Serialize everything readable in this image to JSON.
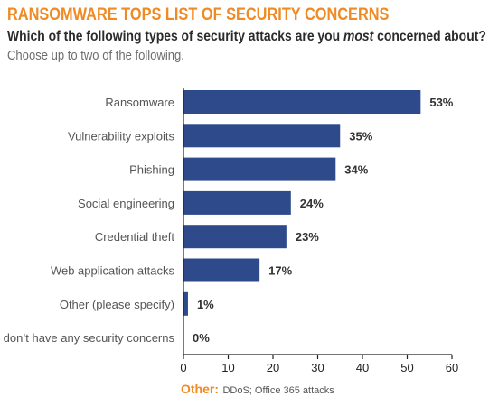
{
  "header": {
    "title": "RANSOMWARE TOPS LIST OF SECURITY CONCERNS",
    "question_before": "Which of the following types of security attacks are you ",
    "question_emphasis": "most",
    "question_after": " concerned about?",
    "instruction": "Choose up to two of the following."
  },
  "chart_data": {
    "type": "bar",
    "orientation": "horizontal",
    "categories": [
      "Ransomware",
      "Vulnerability exploits",
      "Phishing",
      "Social engineering",
      "Credential theft",
      "Web application attacks",
      "Other (please specify)",
      "I don’t have any security concerns"
    ],
    "values": [
      53,
      35,
      34,
      24,
      23,
      17,
      1,
      0
    ],
    "value_labels": [
      "53%",
      "35%",
      "34%",
      "24%",
      "23%",
      "17%",
      "1%",
      "0%"
    ],
    "xlim": [
      0,
      60
    ],
    "xticks": [
      0,
      10,
      20,
      30,
      40,
      50,
      60
    ],
    "grid": false,
    "bar_color": "#2e4a8a"
  },
  "footnote": {
    "key": "Other:",
    "text": "DDoS; Office 365 attacks"
  },
  "colors": {
    "accent": "#f08a24",
    "label_text": "#555555",
    "value_text": "#333333"
  }
}
